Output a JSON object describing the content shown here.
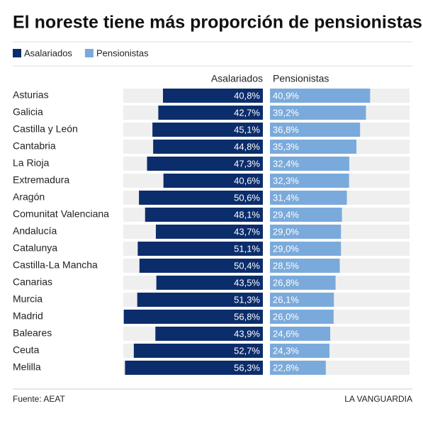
{
  "chart_data": {
    "type": "butterfly",
    "title": "El noreste tiene más proporción de pensionistas",
    "source": "Fuente: AEAT",
    "credit": "LA VANGUARDIA",
    "xlim": [
      0,
      57
    ],
    "categories": [
      "Asturias",
      "Galicia",
      "Castilla y León",
      "Cantabria",
      "La Rioja",
      "Extremadura",
      "Aragón",
      "Comunitat Valenciana",
      "Andalucía",
      "Catalunya",
      "Castilla-La Mancha",
      "Canarias",
      "Murcia",
      "Madrid",
      "Baleares",
      "Ceuta",
      "Melilla"
    ],
    "series": [
      {
        "name": "Asalariados",
        "color": "#0b2d6b",
        "values": [
          40.8,
          42.7,
          45.1,
          44.8,
          47.3,
          40.6,
          50.6,
          48.1,
          43.7,
          51.1,
          50.4,
          43.5,
          51.3,
          56.8,
          43.9,
          52.7,
          56.3
        ],
        "value_labels": [
          "40,8%",
          "42,7%",
          "45,1%",
          "44,8%",
          "47,3%",
          "40,6%",
          "50,6%",
          "48,1%",
          "43,7%",
          "51,1%",
          "50,4%",
          "43,5%",
          "51,3%",
          "56,8%",
          "43,9%",
          "52,7%",
          "56,3%"
        ]
      },
      {
        "name": "Pensionistas",
        "color": "#7aaadb",
        "values": [
          40.9,
          39.2,
          36.8,
          35.3,
          32.4,
          32.3,
          31.4,
          29.4,
          29.0,
          29.0,
          28.5,
          26.8,
          26.1,
          26.0,
          24.6,
          24.3,
          22.8
        ],
        "value_labels": [
          "40,9%",
          "39,2%",
          "36,8%",
          "35,3%",
          "32,4%",
          "32,3%",
          "31,4%",
          "29,4%",
          "29,0%",
          "29,0%",
          "28,5%",
          "26,8%",
          "26,1%",
          "26,0%",
          "24,6%",
          "24,3%",
          "22,8%"
        ]
      }
    ]
  }
}
